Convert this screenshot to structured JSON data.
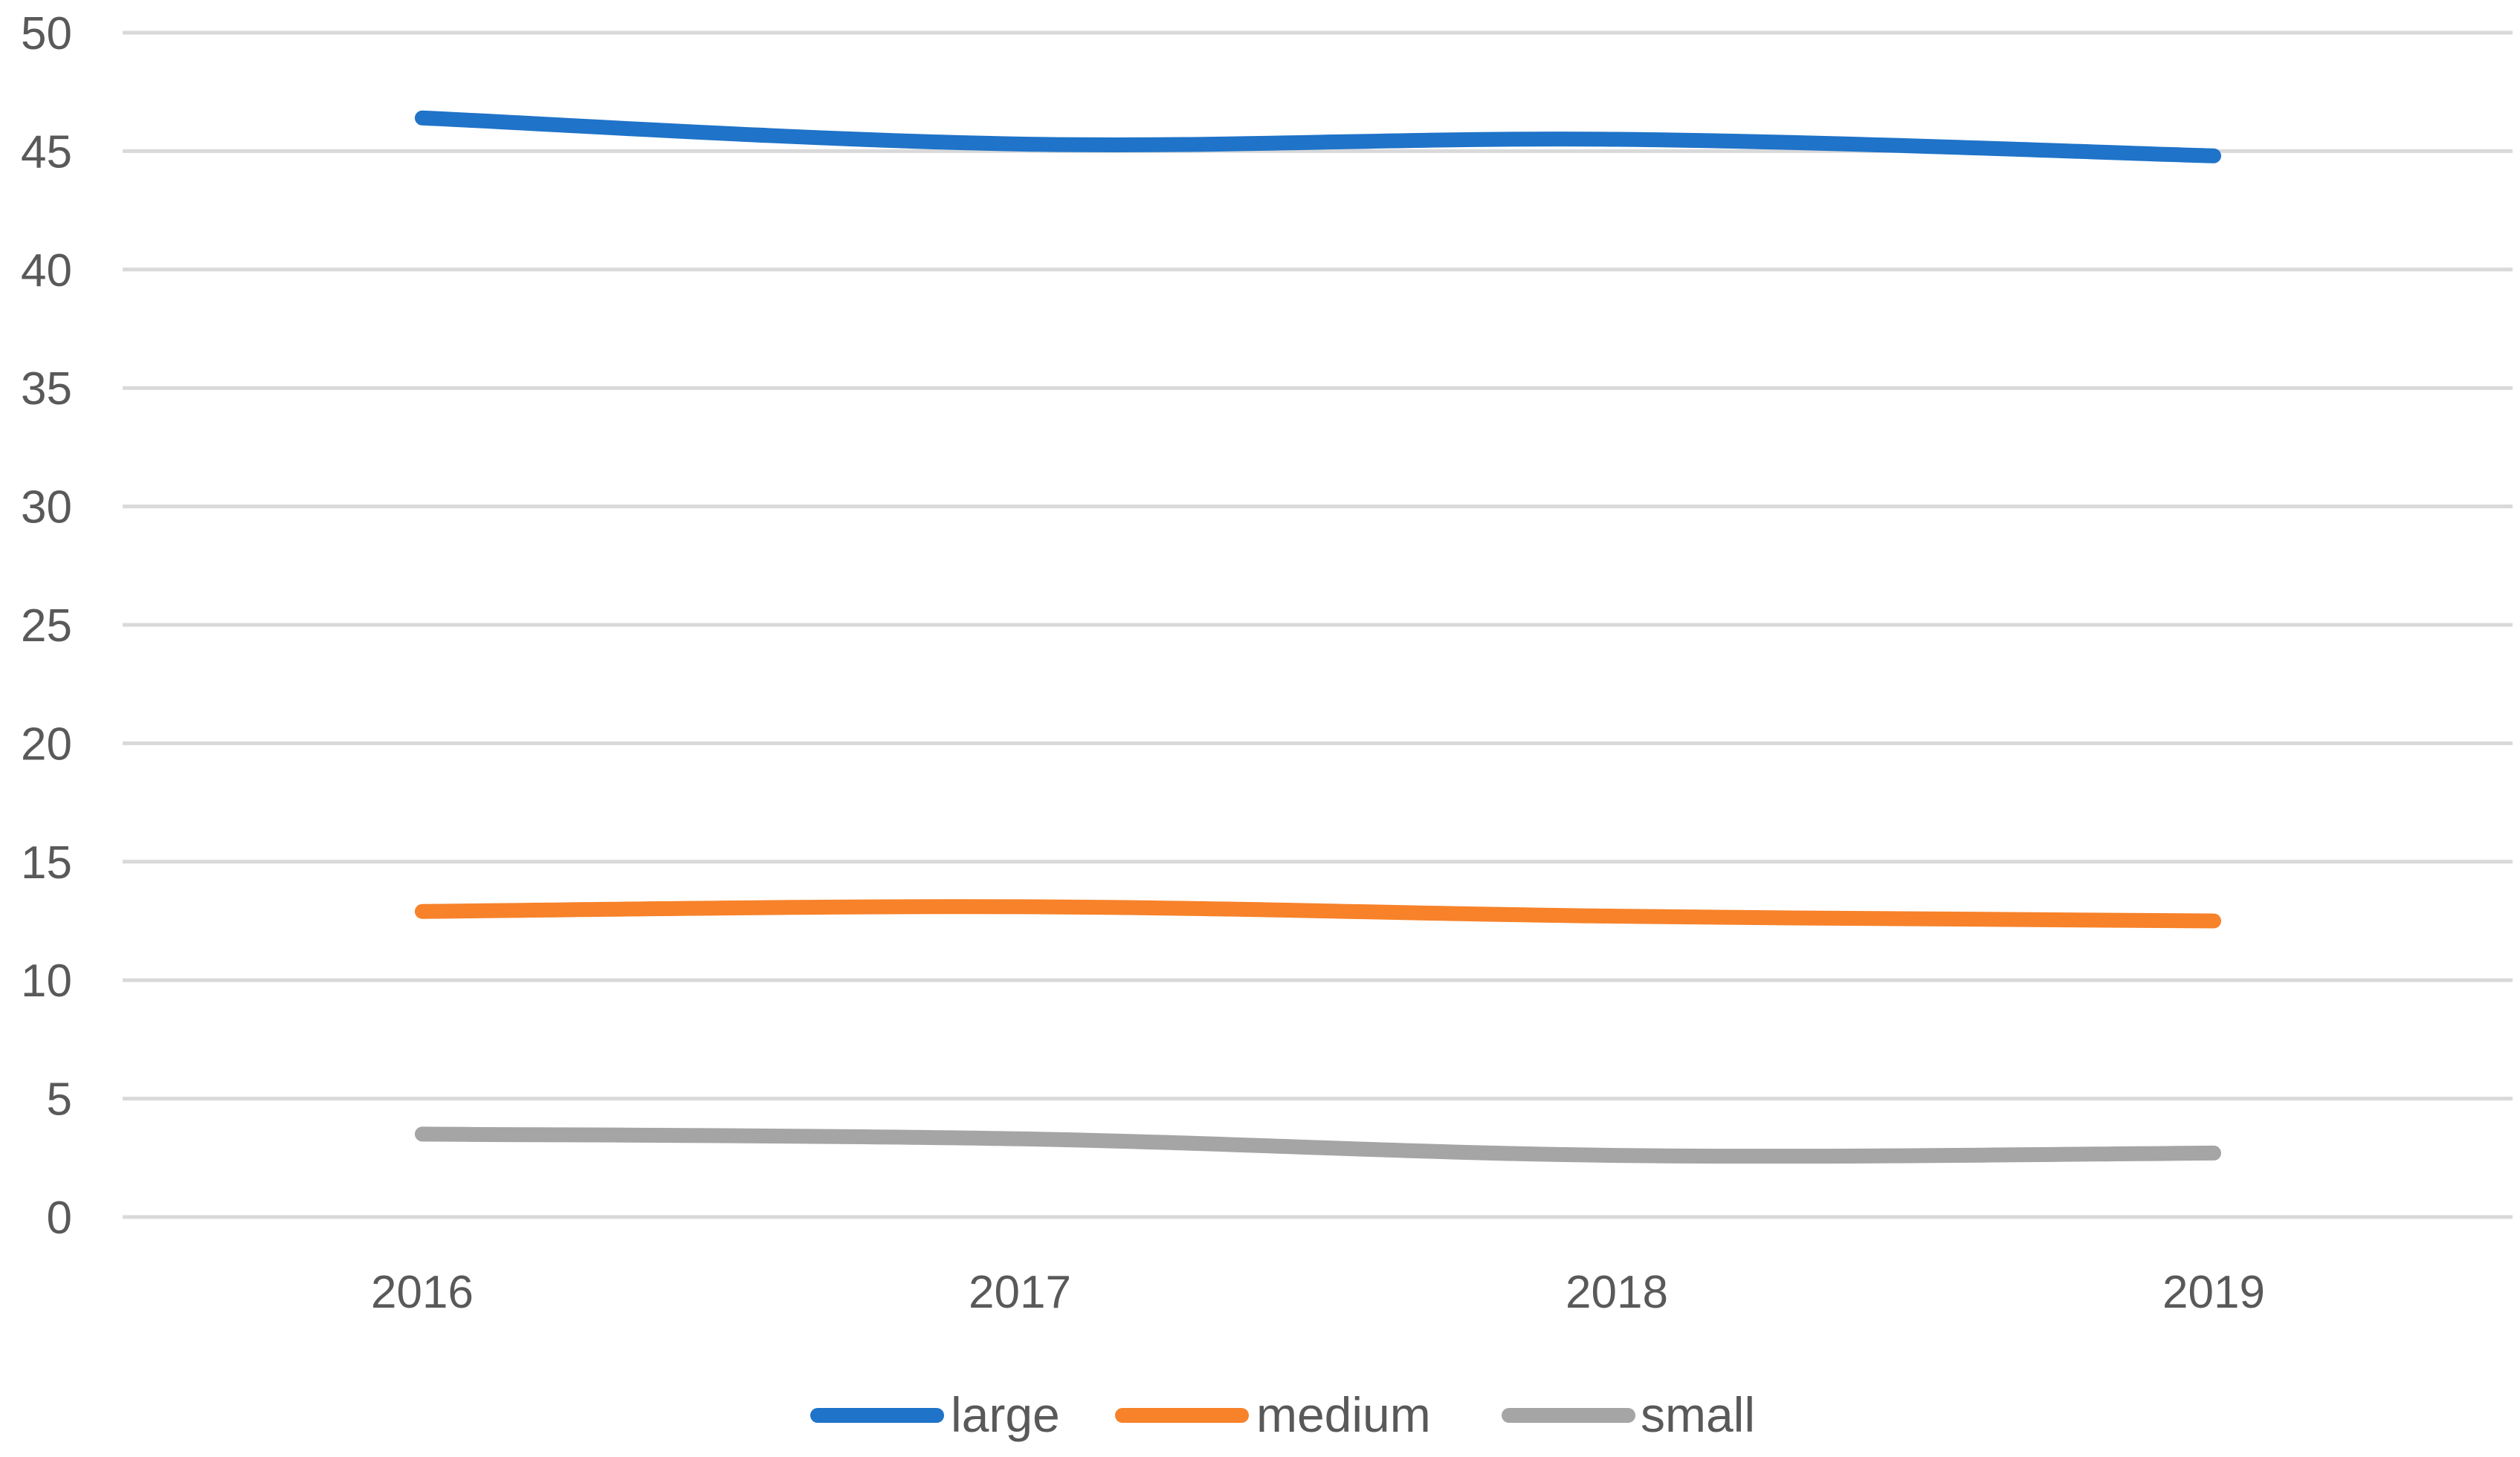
{
  "chart_data": {
    "type": "line",
    "title": "",
    "xlabel": "",
    "ylabel": "",
    "categories": [
      "2016",
      "2017",
      "2018",
      "2019"
    ],
    "ylim": [
      0,
      50
    ],
    "yticks": [
      "0",
      "5",
      "10",
      "15",
      "20",
      "25",
      "30",
      "35",
      "40",
      "45",
      "50"
    ],
    "grid": true,
    "legend_position": "bottom",
    "series": [
      {
        "name": "large",
        "color": "#1f73c8",
        "values": [
          46.4,
          45.3,
          45.5,
          44.8
        ]
      },
      {
        "name": "medium",
        "color": "#f7822a",
        "values": [
          12.9,
          13.1,
          12.7,
          12.5
        ]
      },
      {
        "name": "small",
        "color": "#a5a5a5",
        "values": [
          3.5,
          3.3,
          2.6,
          2.7
        ]
      }
    ]
  }
}
